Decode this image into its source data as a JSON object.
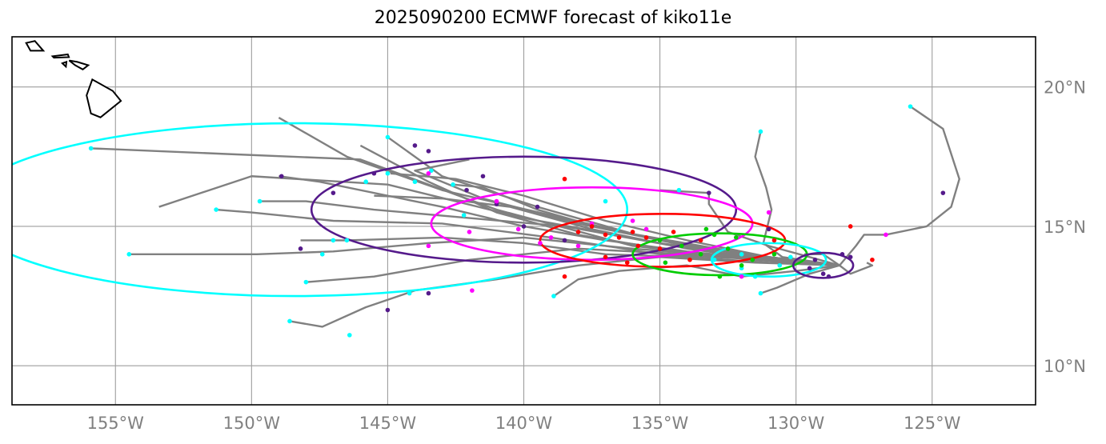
{
  "title": "2025090200 ECMWF forecast of kiko11e",
  "map": {
    "lon_range": [
      -158.8,
      -121.2
    ],
    "lat_range": [
      8.6,
      21.8
    ],
    "lon_ticks": [
      {
        "value": -155,
        "label": "155°W"
      },
      {
        "value": -150,
        "label": "150°W"
      },
      {
        "value": -145,
        "label": "145°W"
      },
      {
        "value": -140,
        "label": "140°W"
      },
      {
        "value": -135,
        "label": "135°W"
      },
      {
        "value": -130,
        "label": "130°W"
      },
      {
        "value": -125,
        "label": "125°W"
      }
    ],
    "lat_ticks": [
      {
        "value": 10,
        "label": "10°N"
      },
      {
        "value": 15,
        "label": "15°N"
      },
      {
        "value": 20,
        "label": "20°N"
      }
    ],
    "gridlines": true,
    "coastline": "Hawaiian Islands",
    "colors": {
      "track": "#808080",
      "grid": "#9e9e9e",
      "frame": "#000000",
      "ticks": "#808080"
    }
  },
  "chart_data": {
    "type": "map-tracks",
    "title": "2025090200 ECMWF forecast of kiko11e",
    "start": [
      -128.4,
      13.6
    ],
    "tracks": [
      [
        [
          -128.4,
          13.6
        ],
        [
          -131.0,
          13.9
        ],
        [
          -135.0,
          14.4
        ],
        [
          -140.0,
          15.3
        ],
        [
          -145.0,
          16.5
        ],
        [
          -150.0,
          16.8
        ],
        [
          -153.4,
          15.7
        ]
      ],
      [
        [
          -128.4,
          13.6
        ],
        [
          -131.5,
          13.8
        ],
        [
          -136.0,
          14.3
        ],
        [
          -141.0,
          15.6
        ],
        [
          -146.0,
          17.4
        ],
        [
          -151.0,
          17.6
        ],
        [
          -155.9,
          17.8
        ]
      ],
      [
        [
          -128.4,
          13.6
        ],
        [
          -131.0,
          13.8
        ],
        [
          -135.0,
          14.0
        ],
        [
          -139.0,
          14.6
        ],
        [
          -143.0,
          15.1
        ],
        [
          -147.0,
          15.2
        ],
        [
          -150.0,
          15.5
        ],
        [
          -151.3,
          15.6
        ]
      ],
      [
        [
          -128.4,
          13.6
        ],
        [
          -132.0,
          13.9
        ],
        [
          -136.0,
          14.2
        ],
        [
          -140.0,
          14.6
        ],
        [
          -143.5,
          14.4
        ],
        [
          -147.0,
          14.1
        ],
        [
          -149.8,
          14.0
        ],
        [
          -154.5,
          14.0
        ]
      ],
      [
        [
          -128.4,
          13.6
        ],
        [
          -131.5,
          13.7
        ],
        [
          -135.0,
          13.9
        ],
        [
          -138.0,
          13.6
        ],
        [
          -141.0,
          13.1
        ],
        [
          -144.0,
          12.7
        ],
        [
          -145.8,
          12.1
        ],
        [
          -147.4,
          11.4
        ],
        [
          -148.6,
          11.6
        ]
      ],
      [
        [
          -128.4,
          13.6
        ],
        [
          -131.0,
          13.8
        ],
        [
          -134.0,
          14.0
        ],
        [
          -138.0,
          14.2
        ],
        [
          -142.0,
          13.8
        ],
        [
          -145.5,
          13.2
        ],
        [
          -148.0,
          13.0
        ]
      ],
      [
        [
          -128.4,
          13.6
        ],
        [
          -131.0,
          13.9
        ],
        [
          -135.0,
          14.5
        ],
        [
          -139.0,
          15.4
        ],
        [
          -143.0,
          16.3
        ],
        [
          -146.5,
          17.5
        ],
        [
          -149.0,
          18.9
        ]
      ],
      [
        [
          -128.4,
          13.6
        ],
        [
          -131.5,
          13.9
        ],
        [
          -135.5,
          14.6
        ],
        [
          -139.5,
          15.7
        ],
        [
          -143.0,
          16.8
        ],
        [
          -145.0,
          18.2
        ]
      ],
      [
        [
          -128.4,
          13.6
        ],
        [
          -131.5,
          13.8
        ],
        [
          -135.0,
          14.2
        ],
        [
          -138.0,
          14.7
        ],
        [
          -141.0,
          15.5
        ],
        [
          -143.5,
          16.6
        ],
        [
          -146.0,
          17.9
        ]
      ],
      [
        [
          -128.4,
          13.6
        ],
        [
          -131.0,
          13.8
        ],
        [
          -134.0,
          14.1
        ],
        [
          -137.0,
          14.5
        ],
        [
          -140.0,
          15.0
        ],
        [
          -143.0,
          15.7
        ],
        [
          -147.5,
          16.6
        ],
        [
          -149.0,
          16.8
        ]
      ],
      [
        [
          -128.4,
          13.6
        ],
        [
          -131.0,
          13.9
        ],
        [
          -134.5,
          14.4
        ],
        [
          -138.0,
          15.1
        ],
        [
          -141.5,
          16.0
        ],
        [
          -144.0,
          17.0
        ],
        [
          -142.0,
          17.4
        ]
      ],
      [
        [
          -128.4,
          13.6
        ],
        [
          -131.0,
          13.7
        ],
        [
          -134.0,
          13.9
        ],
        [
          -137.0,
          14.0
        ],
        [
          -140.0,
          14.4
        ],
        [
          -143.0,
          14.6
        ],
        [
          -146.5,
          14.5
        ],
        [
          -148.2,
          14.5
        ]
      ],
      [
        [
          -128.4,
          13.6
        ],
        [
          -131.0,
          13.8
        ],
        [
          -134.5,
          14.3
        ],
        [
          -138.5,
          15.0
        ],
        [
          -142.0,
          15.3
        ],
        [
          -145.5,
          15.6
        ],
        [
          -148.0,
          15.9
        ],
        [
          -149.7,
          15.9
        ]
      ],
      [
        [
          -128.4,
          13.6
        ],
        [
          -130.5,
          13.9
        ],
        [
          -131.2,
          14.4
        ],
        [
          -130.9,
          15.6
        ],
        [
          -131.1,
          16.4
        ],
        [
          -131.5,
          17.5
        ],
        [
          -131.3,
          18.4
        ]
      ],
      [
        [
          -128.4,
          13.6
        ],
        [
          -129.5,
          13.9
        ],
        [
          -131.0,
          14.3
        ],
        [
          -132.5,
          14.8
        ],
        [
          -133.2,
          15.8
        ],
        [
          -133.2,
          16.2
        ],
        [
          -135.0,
          16.3
        ]
      ],
      [
        [
          -128.4,
          13.6
        ],
        [
          -127.8,
          14.3
        ],
        [
          -127.5,
          14.7
        ],
        [
          -126.7,
          14.7
        ],
        [
          -125.2,
          15.0
        ],
        [
          -124.3,
          15.7
        ],
        [
          -124.0,
          16.7
        ],
        [
          -124.6,
          18.5
        ],
        [
          -125.8,
          19.3
        ]
      ],
      [
        [
          -128.4,
          13.6
        ],
        [
          -128.0,
          13.3
        ],
        [
          -127.2,
          13.6
        ],
        [
          -127.4,
          13.7
        ]
      ],
      [
        [
          -128.4,
          13.6
        ],
        [
          -129.0,
          14.0
        ],
        [
          -129.7,
          14.0
        ]
      ],
      [
        [
          -128.4,
          13.6
        ],
        [
          -129.5,
          13.3
        ],
        [
          -130.7,
          12.8
        ],
        [
          -131.3,
          12.6
        ]
      ],
      [
        [
          -128.4,
          13.6
        ],
        [
          -130.0,
          13.4
        ],
        [
          -132.0,
          13.2
        ],
        [
          -134.0,
          13.6
        ],
        [
          -136.5,
          13.4
        ],
        [
          -138.0,
          13.1
        ],
        [
          -138.9,
          12.5
        ]
      ],
      [
        [
          -128.4,
          13.6
        ],
        [
          -130.5,
          13.8
        ],
        [
          -133.5,
          14.3
        ],
        [
          -137.0,
          14.9
        ],
        [
          -139.5,
          15.6
        ],
        [
          -141.5,
          16.4
        ],
        [
          -142.6,
          16.5
        ]
      ],
      [
        [
          -128.4,
          13.6
        ],
        [
          -131.0,
          13.8
        ],
        [
          -134.0,
          14.2
        ],
        [
          -137.5,
          14.9
        ],
        [
          -140.5,
          15.7
        ],
        [
          -143.0,
          16.0
        ],
        [
          -145.5,
          16.1
        ]
      ],
      [
        [
          -128.4,
          13.6
        ],
        [
          -131.0,
          13.9
        ],
        [
          -134.0,
          14.5
        ],
        [
          -137.0,
          15.2
        ],
        [
          -140.0,
          16.1
        ],
        [
          -142.5,
          16.7
        ],
        [
          -144.9,
          16.9
        ]
      ]
    ],
    "ellipses": [
      {
        "color": "#00ffff",
        "center": [
          -148.4,
          15.6
        ],
        "rx_deg": 12.2,
        "ry_deg": 3.1
      },
      {
        "color": "#551a8b",
        "center": [
          -140.0,
          15.6
        ],
        "rx_deg": 7.8,
        "ry_deg": 1.9
      },
      {
        "color": "#ff00ff",
        "center": [
          -137.5,
          15.1
        ],
        "rx_deg": 5.9,
        "ry_deg": 1.3
      },
      {
        "color": "#ff0000",
        "center": [
          -134.9,
          14.5
        ],
        "rx_deg": 4.5,
        "ry_deg": 0.95
      },
      {
        "color": "#00cc00",
        "center": [
          -132.8,
          14.0
        ],
        "rx_deg": 3.2,
        "ry_deg": 0.75
      },
      {
        "color": "#00ffff",
        "center": [
          -131.0,
          13.8
        ],
        "rx_deg": 2.1,
        "ry_deg": 0.6
      },
      {
        "color": "#551a8b",
        "center": [
          -129.0,
          13.6
        ],
        "rx_deg": 1.1,
        "ry_deg": 0.45
      }
    ],
    "points": [
      {
        "color": "#00ffff",
        "coords": [
          [
            -155.9,
            17.8
          ],
          [
            -154.5,
            14.0
          ],
          [
            -151.3,
            15.6
          ],
          [
            -149.7,
            15.9
          ],
          [
            -148.6,
            11.6
          ],
          [
            -148.0,
            13.0
          ],
          [
            -147.4,
            14.0
          ],
          [
            -147.0,
            14.5
          ],
          [
            -146.5,
            14.5
          ],
          [
            -145.8,
            16.6
          ],
          [
            -145.0,
            18.2
          ],
          [
            -145.0,
            16.9
          ],
          [
            -144.0,
            16.6
          ],
          [
            -143.4,
            17.0
          ],
          [
            -142.6,
            16.5
          ],
          [
            -146.4,
            11.1
          ],
          [
            -144.2,
            12.6
          ],
          [
            -142.2,
            15.4
          ],
          [
            -138.9,
            12.5
          ],
          [
            -132.0,
            13.5
          ],
          [
            -131.3,
            12.6
          ],
          [
            -131.3,
            18.4
          ],
          [
            -130.6,
            13.6
          ],
          [
            -131.5,
            13.2
          ],
          [
            -137.0,
            15.9
          ],
          [
            -134.3,
            16.3
          ],
          [
            -133.0,
            13.8
          ],
          [
            -132.0,
            14.0
          ],
          [
            -130.2,
            13.9
          ],
          [
            -125.8,
            19.3
          ]
        ]
      },
      {
        "color": "#551a8b",
        "coords": [
          [
            -148.9,
            16.8
          ],
          [
            -147.0,
            16.2
          ],
          [
            -148.2,
            14.2
          ],
          [
            -144.0,
            17.9
          ],
          [
            -143.5,
            17.7
          ],
          [
            -145.5,
            16.9
          ],
          [
            -142.1,
            16.3
          ],
          [
            -141.5,
            16.8
          ],
          [
            -141.0,
            15.8
          ],
          [
            -143.5,
            12.6
          ],
          [
            -145.0,
            12.0
          ],
          [
            -140.0,
            15.0
          ],
          [
            -139.5,
            15.7
          ],
          [
            -138.5,
            14.5
          ],
          [
            -133.2,
            16.2
          ],
          [
            -131.0,
            14.9
          ],
          [
            -128.3,
            14.0
          ],
          [
            -124.6,
            16.2
          ],
          [
            -129.5,
            13.5
          ],
          [
            -128.8,
            13.2
          ],
          [
            -129.3,
            13.8
          ],
          [
            -128.0,
            13.9
          ],
          [
            -129.0,
            13.3
          ]
        ]
      },
      {
        "color": "#ff00ff",
        "coords": [
          [
            -143.5,
            16.9
          ],
          [
            -143.5,
            14.3
          ],
          [
            -142.0,
            14.8
          ],
          [
            -141.0,
            15.9
          ],
          [
            -140.2,
            14.9
          ],
          [
            -139.0,
            14.6
          ],
          [
            -138.0,
            14.3
          ],
          [
            -136.0,
            15.2
          ],
          [
            -135.5,
            14.9
          ],
          [
            -139.4,
            14.4
          ],
          [
            -141.9,
            12.7
          ],
          [
            -132.0,
            13.2
          ],
          [
            -131.0,
            15.5
          ],
          [
            -126.7,
            14.7
          ],
          [
            -137.5,
            15.1
          ]
        ]
      },
      {
        "color": "#ff0000",
        "coords": [
          [
            -138.5,
            16.7
          ],
          [
            -138.0,
            14.8
          ],
          [
            -137.5,
            15.0
          ],
          [
            -137.0,
            14.7
          ],
          [
            -136.5,
            14.6
          ],
          [
            -136.0,
            14.8
          ],
          [
            -135.5,
            14.6
          ],
          [
            -135.0,
            14.2
          ],
          [
            -134.5,
            14.8
          ],
          [
            -133.9,
            13.8
          ],
          [
            -133.5,
            14.5
          ],
          [
            -136.2,
            13.7
          ],
          [
            -138.5,
            13.2
          ],
          [
            -130.8,
            14.5
          ],
          [
            -128.0,
            15.0
          ],
          [
            -127.2,
            13.8
          ],
          [
            -135.8,
            14.3
          ],
          [
            -137.0,
            13.9
          ]
        ]
      },
      {
        "color": "#00cc00",
        "coords": [
          [
            -135.0,
            14.5
          ],
          [
            -134.2,
            14.3
          ],
          [
            -133.5,
            14.0
          ],
          [
            -133.0,
            14.7
          ],
          [
            -132.5,
            14.2
          ],
          [
            -132.0,
            13.6
          ],
          [
            -131.6,
            13.8
          ],
          [
            -132.8,
            13.2
          ],
          [
            -134.8,
            13.7
          ],
          [
            -130.8,
            14.0
          ],
          [
            -133.3,
            14.9
          ],
          [
            -132.2,
            14.6
          ]
        ]
      }
    ],
    "coastline_outline": [
      [
        [
          -160.25,
          22.1
        ],
        [
          -159.55,
          22.22
        ],
        [
          -159.3,
          22.06
        ],
        [
          -159.4,
          21.9
        ],
        [
          -159.78,
          21.92
        ],
        [
          -160.25,
          22.1
        ]
      ],
      [
        [
          -158.28,
          21.58
        ],
        [
          -157.96,
          21.65
        ],
        [
          -157.65,
          21.3
        ],
        [
          -158.12,
          21.3
        ],
        [
          -158.28,
          21.58
        ]
      ],
      [
        [
          -157.31,
          21.1
        ],
        [
          -156.75,
          21.17
        ],
        [
          -156.71,
          21.07
        ],
        [
          -157.26,
          21.05
        ],
        [
          -157.31,
          21.1
        ]
      ],
      [
        [
          -156.7,
          20.95
        ],
        [
          -156.4,
          20.9
        ],
        [
          -156.0,
          20.78
        ],
        [
          -156.2,
          20.63
        ],
        [
          -156.48,
          20.78
        ],
        [
          -156.7,
          20.95
        ]
      ],
      [
        [
          -156.95,
          20.85
        ],
        [
          -156.8,
          20.9
        ],
        [
          -156.82,
          20.73
        ],
        [
          -156.95,
          20.85
        ]
      ],
      [
        [
          -155.85,
          20.27
        ],
        [
          -155.1,
          19.86
        ],
        [
          -154.8,
          19.5
        ],
        [
          -155.55,
          18.91
        ],
        [
          -155.9,
          19.05
        ],
        [
          -156.06,
          19.7
        ],
        [
          -155.85,
          20.27
        ]
      ]
    ]
  }
}
